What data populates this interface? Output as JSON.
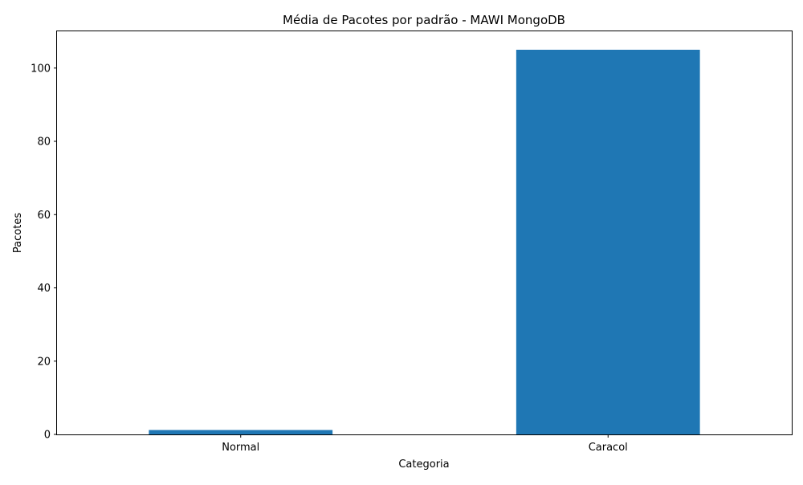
{
  "chart_data": {
    "type": "bar",
    "title": "Média de Pacotes por padrão - MAWI MongoDB",
    "xlabel": "Categoria",
    "ylabel": "Pacotes",
    "categories": [
      "Normal",
      "Caracol"
    ],
    "values": [
      1.2,
      105
    ],
    "ylim": [
      0,
      110.25
    ],
    "yticks": [
      0,
      20,
      40,
      60,
      80,
      100
    ],
    "bar_color": "#1f77b4",
    "grid": false,
    "legend": "none"
  }
}
